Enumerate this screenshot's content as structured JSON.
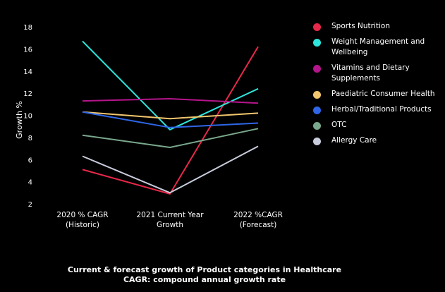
{
  "chart_data": {
    "type": "line",
    "categories": [
      "2020 % CAGR\n(Historic)",
      "2021 Current Year\nGrowth",
      "2022 %CAGR\n(Forecast)"
    ],
    "ylabel": "Growth %",
    "ylim": [
      2,
      18
    ],
    "yticks": [
      2,
      4,
      6,
      8,
      10,
      12,
      14,
      16,
      18
    ],
    "grid": false,
    "legend_position": "right",
    "series": [
      {
        "name": "Sports Nutrition",
        "color": "#e8284a",
        "values": [
          5.1,
          2.9,
          16.2
        ]
      },
      {
        "name": "Weight Management and Wellbeing",
        "color": "#2de6dc",
        "values": [
          16.7,
          8.7,
          12.4
        ]
      },
      {
        "name": "Vitamins and Dietary Supplements",
        "color": "#b5158b",
        "values": [
          11.3,
          11.5,
          11.1
        ]
      },
      {
        "name": "Paediatric Consumer Health",
        "color": "#f2c66d",
        "values": [
          10.3,
          9.7,
          10.2
        ]
      },
      {
        "name": "Herbal/Traditional Products",
        "color": "#2f66e8",
        "values": [
          10.3,
          8.9,
          9.3
        ]
      },
      {
        "name": "OTC",
        "color": "#7aa88c",
        "values": [
          8.2,
          7.1,
          8.8
        ]
      },
      {
        "name": "Allergy Care",
        "color": "#c9ccdc",
        "values": [
          6.3,
          3.0,
          7.2
        ]
      }
    ]
  },
  "caption": {
    "line1": "Current & forecast growth of Product categories in Healthcare",
    "line2": "CAGR: compound annual growth rate"
  }
}
